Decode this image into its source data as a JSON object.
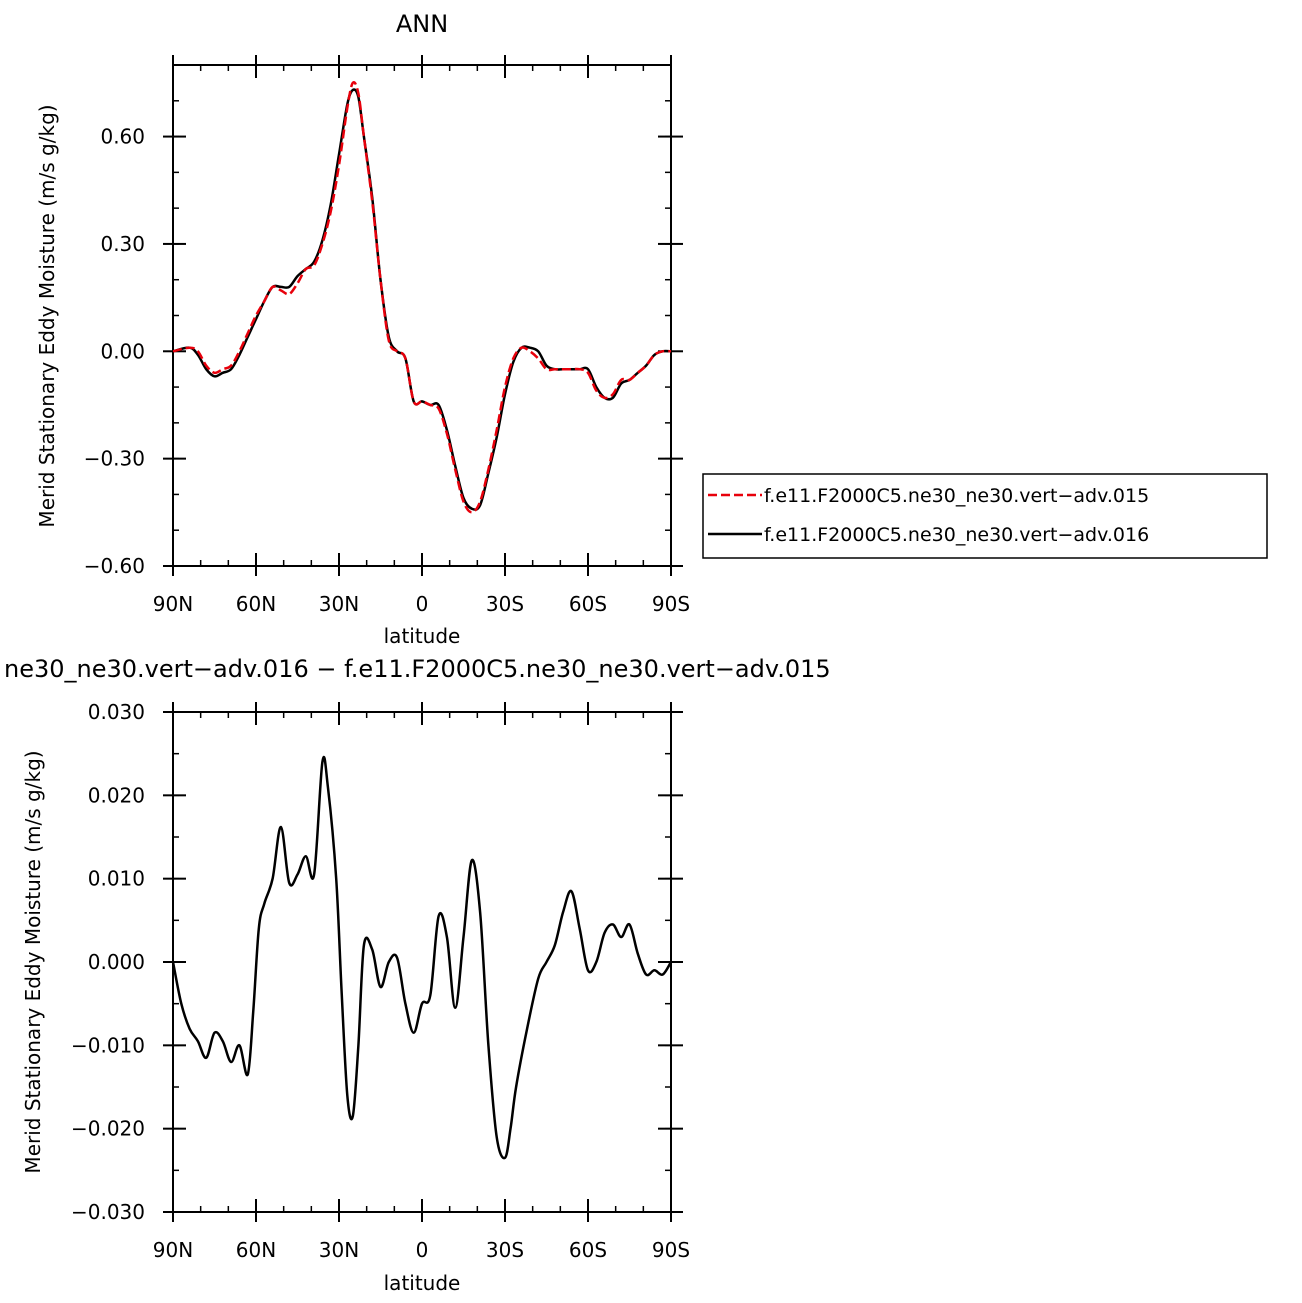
{
  "chart_data": [
    {
      "type": "line",
      "title": "ANN",
      "xlabel": "latitude",
      "ylabel": "Merid Stationary Eddy Moisture (m/s g/kg)",
      "xlim": [
        90,
        -90
      ],
      "ylim": [
        -0.6,
        0.8
      ],
      "xticks": [
        90,
        60,
        30,
        0,
        -30,
        -60,
        -90
      ],
      "xtick_labels": [
        "90N",
        "60N",
        "30N",
        "0",
        "30S",
        "60S",
        "90S"
      ],
      "yticks": [
        -0.6,
        -0.3,
        0.0,
        0.3,
        0.6
      ],
      "ytick_labels": [
        "−0.60",
        "−0.30",
        "0.00",
        "0.30",
        "0.60"
      ],
      "legend_position": "right",
      "series": [
        {
          "name": "f.e11.F2000C5.ne30_ne30.vert−adv.015",
          "color": "#e8000b",
          "dash": "dashed",
          "x": [
            90,
            84,
            81,
            78,
            75,
            72,
            69,
            66,
            63,
            60,
            57,
            54,
            51,
            48,
            45,
            42,
            39,
            36,
            33,
            30,
            27,
            25,
            23,
            21,
            18,
            15,
            12,
            9,
            6,
            3,
            0,
            -3,
            -6,
            -9,
            -12,
            -15,
            -18,
            -21,
            -24,
            -27,
            -30,
            -33,
            -36,
            -39,
            -42,
            -45,
            -48,
            -51,
            -54,
            -57,
            -60,
            -63,
            -66,
            -69,
            -72,
            -75,
            -78,
            -81,
            -84,
            -87,
            -90
          ],
          "y": [
            0.0,
            0.01,
            0.0,
            -0.04,
            -0.06,
            -0.05,
            -0.04,
            0.0,
            0.05,
            0.1,
            0.14,
            0.18,
            0.17,
            0.16,
            0.19,
            0.23,
            0.24,
            0.3,
            0.39,
            0.52,
            0.68,
            0.75,
            0.72,
            0.6,
            0.42,
            0.2,
            0.03,
            0.0,
            -0.02,
            -0.14,
            -0.14,
            -0.15,
            -0.16,
            -0.23,
            -0.33,
            -0.42,
            -0.45,
            -0.42,
            -0.33,
            -0.22,
            -0.1,
            -0.02,
            0.01,
            0.0,
            -0.02,
            -0.05,
            -0.05,
            -0.05,
            -0.05,
            -0.05,
            -0.06,
            -0.11,
            -0.13,
            -0.12,
            -0.08,
            -0.08,
            -0.06,
            -0.04,
            -0.01,
            0.0,
            0.0
          ]
        },
        {
          "name": "f.e11.F2000C5.ne30_ne30.vert−adv.016",
          "color": "#000000",
          "dash": "solid",
          "x": [
            90,
            84,
            81,
            78,
            75,
            72,
            69,
            66,
            63,
            60,
            57,
            54,
            51,
            48,
            45,
            42,
            39,
            36,
            33,
            30,
            27,
            25,
            23,
            21,
            18,
            15,
            12,
            9,
            6,
            3,
            0,
            -3,
            -6,
            -9,
            -12,
            -15,
            -18,
            -21,
            -24,
            -27,
            -30,
            -33,
            -36,
            -39,
            -42,
            -45,
            -48,
            -51,
            -54,
            -57,
            -60,
            -63,
            -66,
            -69,
            -72,
            -75,
            -78,
            -81,
            -84,
            -87,
            -90
          ],
          "y": [
            0.0,
            0.01,
            -0.01,
            -0.05,
            -0.07,
            -0.06,
            -0.05,
            -0.01,
            0.04,
            0.09,
            0.14,
            0.18,
            0.18,
            0.18,
            0.21,
            0.23,
            0.25,
            0.31,
            0.41,
            0.55,
            0.69,
            0.73,
            0.71,
            0.6,
            0.43,
            0.2,
            0.04,
            0.0,
            -0.02,
            -0.14,
            -0.14,
            -0.15,
            -0.15,
            -0.22,
            -0.32,
            -0.41,
            -0.44,
            -0.43,
            -0.34,
            -0.24,
            -0.12,
            -0.03,
            0.01,
            0.01,
            0.0,
            -0.04,
            -0.05,
            -0.05,
            -0.05,
            -0.05,
            -0.05,
            -0.1,
            -0.13,
            -0.13,
            -0.09,
            -0.08,
            -0.06,
            -0.04,
            -0.01,
            0.0,
            0.0
          ]
        }
      ]
    },
    {
      "type": "line",
      "title": "ne30_ne30.vert−adv.016 − f.e11.F2000C5.ne30_ne30.vert−adv.015",
      "xlabel": "latitude",
      "ylabel": "Merid Stationary Eddy Moisture (m/s g/kg)",
      "xlim": [
        90,
        -90
      ],
      "ylim": [
        -0.03,
        0.03
      ],
      "xticks": [
        90,
        60,
        30,
        0,
        -30,
        -60,
        -90
      ],
      "xtick_labels": [
        "90N",
        "60N",
        "30N",
        "0",
        "30S",
        "60S",
        "90S"
      ],
      "yticks": [
        -0.03,
        -0.02,
        -0.01,
        0.0,
        0.01,
        0.02,
        0.03
      ],
      "ytick_labels": [
        "−0.030",
        "−0.020",
        "−0.010",
        "0.000",
        "0.010",
        "0.020",
        "0.030"
      ],
      "series": [
        {
          "color": "#000000",
          "dash": "solid",
          "x": [
            90,
            87,
            84,
            81,
            78,
            75,
            72,
            69,
            66,
            63,
            61,
            59,
            57,
            54,
            51,
            48,
            45,
            42,
            39,
            36,
            34,
            31,
            29,
            27,
            25,
            23,
            21,
            18,
            15,
            12,
            9,
            6,
            3,
            0,
            -3,
            -6,
            -9,
            -12,
            -15,
            -18,
            -21,
            -24,
            -27,
            -30,
            -32,
            -34,
            -38,
            -42,
            -45,
            -48,
            -51,
            -54,
            -57,
            -60,
            -63,
            -66,
            -69,
            -72,
            -75,
            -78,
            -81,
            -84,
            -87,
            -90
          ],
          "y": [
            0.0,
            -0.005,
            -0.008,
            -0.0095,
            -0.0115,
            -0.0085,
            -0.0095,
            -0.012,
            -0.01,
            -0.0135,
            -0.006,
            0.004,
            0.007,
            0.01,
            0.0162,
            0.0095,
            0.0105,
            0.0127,
            0.0105,
            0.024,
            0.021,
            0.01,
            -0.004,
            -0.016,
            -0.0185,
            -0.01,
            0.002,
            0.0015,
            -0.003,
            0.0,
            0.0005,
            -0.005,
            -0.0085,
            -0.005,
            -0.004,
            0.0055,
            0.003,
            -0.0055,
            0.003,
            0.0122,
            0.006,
            -0.01,
            -0.021,
            -0.0235,
            -0.02,
            -0.015,
            -0.008,
            -0.002,
            0.0,
            0.002,
            0.006,
            0.0085,
            0.004,
            -0.001,
            0.0,
            0.0035,
            0.0045,
            0.003,
            0.0045,
            0.001,
            -0.0015,
            -0.001,
            -0.0015,
            0.0
          ]
        }
      ]
    }
  ]
}
